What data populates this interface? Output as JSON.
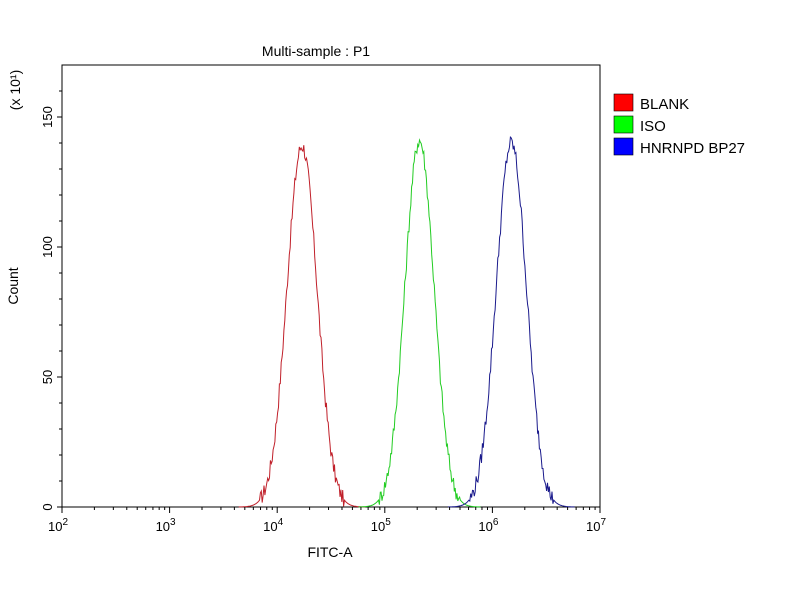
{
  "chart_data": {
    "type": "line",
    "title": "Multi-sample : P1",
    "xlabel": "FITC-A",
    "ylabel": "Count",
    "y_multiplier_label": "(x 10¹)",
    "x_scale": "log",
    "xlim": [
      100,
      10000000
    ],
    "ylim": [
      0,
      170
    ],
    "x_ticks": [
      {
        "value": 100,
        "base": "10",
        "exp": "2"
      },
      {
        "value": 1000,
        "base": "10",
        "exp": "3"
      },
      {
        "value": 10000,
        "base": "10",
        "exp": "4"
      },
      {
        "value": 100000,
        "base": "10",
        "exp": "5"
      },
      {
        "value": 1000000,
        "base": "10",
        "exp": "6"
      },
      {
        "value": 10000000,
        "base": "10",
        "exp": "7"
      }
    ],
    "y_ticks": [
      0,
      50,
      100,
      150
    ],
    "grid": false,
    "legend_position": "right",
    "series": [
      {
        "name": "BLANK",
        "color": "#c0202a",
        "legend_color": "#ff0000",
        "peak_x": 17000,
        "peak_y": 139,
        "log_sigma": 0.14
      },
      {
        "name": "ISO",
        "color": "#22cc22",
        "legend_color": "#00ff00",
        "peak_x": 210000,
        "peak_y": 141,
        "log_sigma": 0.135
      },
      {
        "name": "HNRNPD BP27",
        "color": "#1a1a8c",
        "legend_color": "#0000ff",
        "peak_x": 1500000,
        "peak_y": 140,
        "log_sigma": 0.14
      }
    ]
  }
}
